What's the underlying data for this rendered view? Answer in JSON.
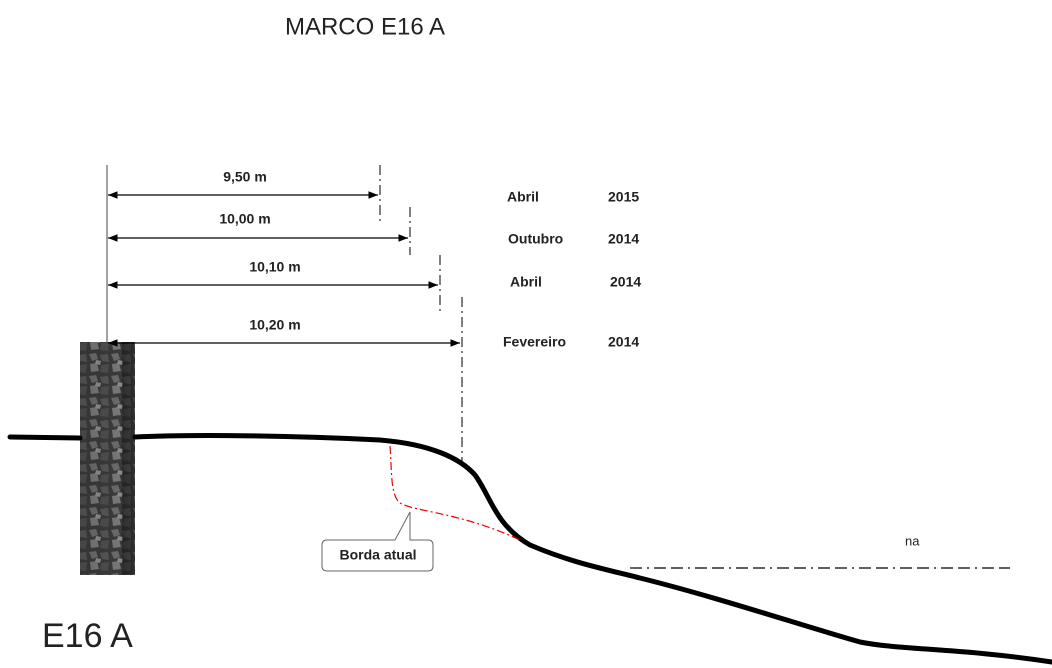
{
  "title": "MARCO E16 A",
  "measurements": [
    {
      "distance": "9,50 m",
      "month": "Abril",
      "year": "2015"
    },
    {
      "distance": "10,00 m",
      "month": "Outubro",
      "year": "2014"
    },
    {
      "distance": "10,10 m",
      "month": "Abril",
      "year": "2014"
    },
    {
      "distance": "10,20 m",
      "month": "Fevereiro",
      "year": "2014"
    }
  ],
  "callout": "Borda atual",
  "water_label": "na",
  "marker_label": "E16 A"
}
